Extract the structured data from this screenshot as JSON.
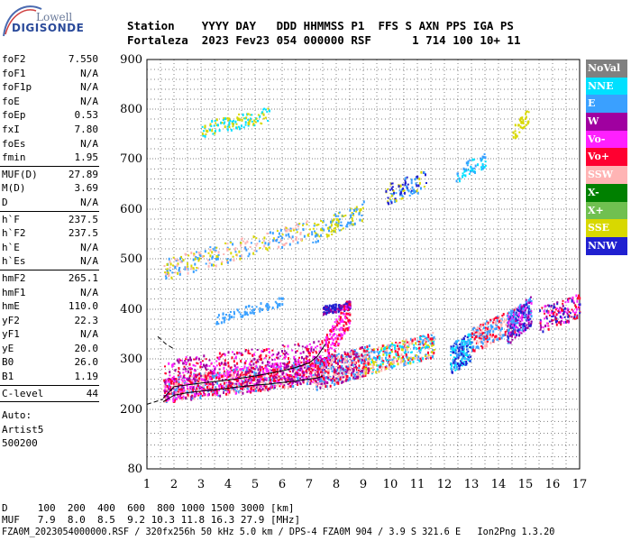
{
  "logo": {
    "line1": "Lowell",
    "line2": "DIGISONDE"
  },
  "header": {
    "row1": "Station    YYYY DAY   DDD HHMMSS P1  FFS S AXN PPS IGA PS",
    "row2": "Fortaleza  2023 Fev23 054 000000 RSF      1 714 100 10+ 11"
  },
  "params_groups": [
    [
      [
        "foF2",
        "7.550"
      ],
      [
        "foF1",
        "N/A"
      ],
      [
        "foF1p",
        "N/A"
      ],
      [
        "foE",
        "N/A"
      ],
      [
        "foEp",
        "0.53"
      ],
      [
        "fxI",
        "7.80"
      ],
      [
        "foEs",
        "N/A"
      ],
      [
        "fmin",
        "1.95"
      ]
    ],
    [
      [
        "MUF(D)",
        "27.89"
      ],
      [
        "M(D)",
        "3.69"
      ],
      [
        "D",
        "N/A"
      ]
    ],
    [
      [
        "h`F",
        "237.5"
      ],
      [
        "h`F2",
        "237.5"
      ],
      [
        "h`E",
        "N/A"
      ],
      [
        "h`Es",
        "N/A"
      ]
    ],
    [
      [
        "hmF2",
        "265.1"
      ],
      [
        "hmF1",
        "N/A"
      ],
      [
        "hmE",
        "110.0"
      ],
      [
        "yF2",
        "22.3"
      ],
      [
        "yF1",
        "N/A"
      ],
      [
        "yE",
        "20.0"
      ],
      [
        "B0",
        "26.0"
      ],
      [
        "B1",
        "1.19"
      ]
    ],
    [
      [
        "C-level",
        "44"
      ]
    ]
  ],
  "auto_lines": [
    "Auto:",
    "Artist5",
    "500200"
  ],
  "legend": [
    {
      "label": "NoVal",
      "color": "#808080"
    },
    {
      "label": "NNE",
      "color": "#00e0ff"
    },
    {
      "label": "E",
      "color": "#3aa0ff"
    },
    {
      "label": "W",
      "color": "#a000a0"
    },
    {
      "label": "Vo-",
      "color": "#ff20ff"
    },
    {
      "label": "Vo+",
      "color": "#ff0030"
    },
    {
      "label": "SSW",
      "color": "#ffb4b4"
    },
    {
      "label": "X-",
      "color": "#008000"
    },
    {
      "label": "X+",
      "color": "#70c050"
    },
    {
      "label": "SSE",
      "color": "#d8d800"
    },
    {
      "label": "NNW",
      "color": "#2020d0"
    }
  ],
  "footer": {
    "d_row": "D     100  200  400  600  800 1000 1500 3000 [km]",
    "muf_row": "MUF   7.9  8.0  8.5  9.2 10.3 11.8 16.3 27.9 [MHz]",
    "file_row": "FZA0M_2023054000000.RSF / 320fx256h 50 kHz 5.0 km / DPS-4 FZA0M 904 / 3.9 S 321.6 E   Ion2Png 1.3.20"
  },
  "chart_data": {
    "type": "scatter",
    "x_ticks": [
      "1",
      "2",
      "3",
      "4",
      "5",
      "6",
      "7",
      "8",
      "9",
      "10",
      "11",
      "12",
      "13",
      "14",
      "15",
      "16",
      "17"
    ],
    "y_ticks": [
      "80",
      "200",
      "300",
      "400",
      "500",
      "600",
      "700",
      "800",
      "900"
    ],
    "xlim": [
      1,
      17
    ],
    "ylim": [
      80,
      900
    ],
    "grid": true,
    "trace_h_F": {
      "x": [
        1.6,
        2,
        3,
        4,
        5,
        6,
        6.5,
        7,
        7.3,
        7.6
      ],
      "y": [
        222,
        245,
        252,
        258,
        266,
        276,
        283,
        292,
        305,
        330
      ]
    },
    "trace_O": {
      "x": [
        1.6,
        2,
        2.5,
        3,
        3.5,
        4,
        4.5,
        5,
        5.5,
        6,
        6.5,
        7,
        7.3,
        7.5
      ],
      "y": [
        215,
        228,
        233,
        236,
        239,
        242,
        245,
        248,
        250,
        253,
        256,
        260,
        262,
        266
      ]
    },
    "trace_dashed": {
      "x": [
        1.4,
        1.7,
        2.0
      ],
      "y": [
        345,
        330,
        320
      ]
    },
    "trace_dashed_low": {
      "x": [
        1.0,
        1.3,
        1.6
      ],
      "y": [
        210,
        215,
        220
      ]
    }
  }
}
